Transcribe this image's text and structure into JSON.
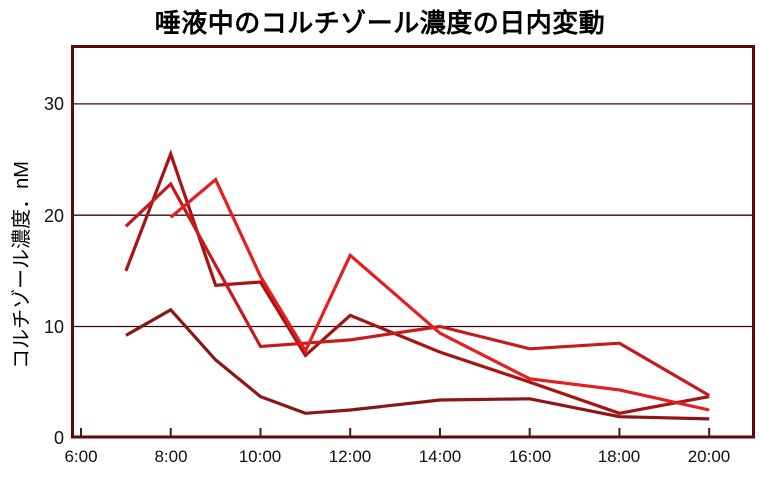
{
  "chart_data": {
    "type": "line",
    "title": "唾液中のコルチゾール濃度の日内変動",
    "ylabel": "コルチゾール濃度．nM",
    "xlabel": "",
    "x_unit": "time-of-day",
    "x_tick_labels": [
      "6:00",
      "8:00",
      "10:00",
      "12:00",
      "14:00",
      "16:00",
      "18:00",
      "20:00"
    ],
    "x_tick_hours": [
      6,
      8,
      10,
      12,
      14,
      16,
      18,
      20
    ],
    "y_tick_labels": [
      "0",
      "10",
      "20",
      "30"
    ],
    "y_tick_values": [
      0,
      10,
      20,
      30
    ],
    "xlim_hours": [
      5.8,
      21.1
    ],
    "ylim": [
      0,
      35.3
    ],
    "grid": "horizontal",
    "legend": "none",
    "border_color": "#5a0b0b",
    "gridline_color": "#3c0a0a",
    "series": [
      {
        "name": "line-1-darkest",
        "color": "#8c1616",
        "points": [
          [
            7,
            9.2
          ],
          [
            8,
            11.5
          ],
          [
            9,
            7.0
          ],
          [
            10,
            3.7
          ],
          [
            11,
            2.2
          ],
          [
            12,
            2.5
          ],
          [
            14,
            3.4
          ],
          [
            16,
            3.5
          ],
          [
            18,
            1.9
          ],
          [
            20,
            1.7
          ]
        ]
      },
      {
        "name": "line-2-dark-red",
        "color": "#a61414",
        "points": [
          [
            7,
            15.0
          ],
          [
            8,
            25.5
          ],
          [
            9,
            13.7
          ],
          [
            10,
            14.0
          ],
          [
            11,
            7.4
          ],
          [
            12,
            11.0
          ],
          [
            14,
            7.7
          ],
          [
            16,
            5.0
          ],
          [
            18,
            2.2
          ],
          [
            20,
            3.7
          ]
        ]
      },
      {
        "name": "line-3-medium-red",
        "color": "#c41c1c",
        "points": [
          [
            7,
            19.0
          ],
          [
            8,
            22.8
          ],
          [
            9,
            15.5
          ],
          [
            10,
            8.2
          ],
          [
            11,
            8.5
          ],
          [
            12,
            8.8
          ],
          [
            14,
            10.0
          ],
          [
            16,
            8.0
          ],
          [
            18,
            8.5
          ],
          [
            20,
            3.8
          ]
        ]
      },
      {
        "name": "line-4-bright-red",
        "color": "#e51e1e",
        "points": [
          [
            8,
            19.8
          ],
          [
            9,
            23.2
          ],
          [
            10,
            14.5
          ],
          [
            11,
            7.8
          ],
          [
            12,
            16.4
          ],
          [
            14,
            9.4
          ],
          [
            16,
            5.3
          ],
          [
            18,
            4.3
          ],
          [
            20,
            2.5
          ]
        ]
      }
    ]
  }
}
